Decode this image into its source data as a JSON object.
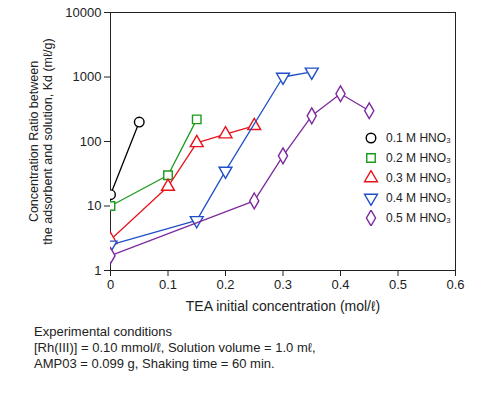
{
  "chart_data": {
    "type": "line",
    "x_label": "TEA initial concentration (mol/ℓ)",
    "y_label": [
      "Concentration Ratio between",
      "the adsorbent and solution, Kd (mℓ/g)"
    ],
    "xlim": [
      0,
      0.6
    ],
    "xticks": [
      0,
      0.1,
      0.2,
      0.3,
      0.4,
      0.5,
      0.6
    ],
    "ylim": [
      1,
      10000
    ],
    "yticks": [
      1,
      10,
      100,
      1000,
      10000
    ],
    "log": "y",
    "grid": false,
    "legend": "right",
    "series": [
      {
        "name": "0.1 M HNO₃",
        "color": "#000000",
        "marker": "circle",
        "x": [
          0,
          0.05
        ],
        "values": [
          15,
          200
        ]
      },
      {
        "name": "0.2 M HNO₃",
        "color": "#1a9a1a",
        "marker": "square",
        "x": [
          0,
          0.1,
          0.15
        ],
        "values": [
          10,
          30,
          220
        ]
      },
      {
        "name": "0.3 M HNO₃",
        "color": "#e8141c",
        "marker": "triangle",
        "x": [
          0,
          0.1,
          0.15,
          0.2,
          0.25
        ],
        "values": [
          3,
          20,
          95,
          130,
          175
        ]
      },
      {
        "name": "0.4 M HNO₃",
        "color": "#1f4fc8",
        "marker": "triangle-down",
        "x": [
          0,
          0.15,
          0.2,
          0.3,
          0.35
        ],
        "values": [
          2.5,
          6,
          35,
          1000,
          1200
        ]
      },
      {
        "name": "0.5 M HNO₃",
        "color": "#7d2a9e",
        "marker": "diamond",
        "x": [
          0,
          0.25,
          0.3,
          0.35,
          0.4,
          0.45
        ],
        "values": [
          1.7,
          12,
          60,
          250,
          550,
          300
        ]
      }
    ],
    "caption": [
      "Experimental conditions",
      "[Rh(III)] = 0.10 mmol/ℓ, Solution volume = 1.0 mℓ,",
      "AMP03 = 0.099 g, Shaking time = 60 min."
    ]
  }
}
